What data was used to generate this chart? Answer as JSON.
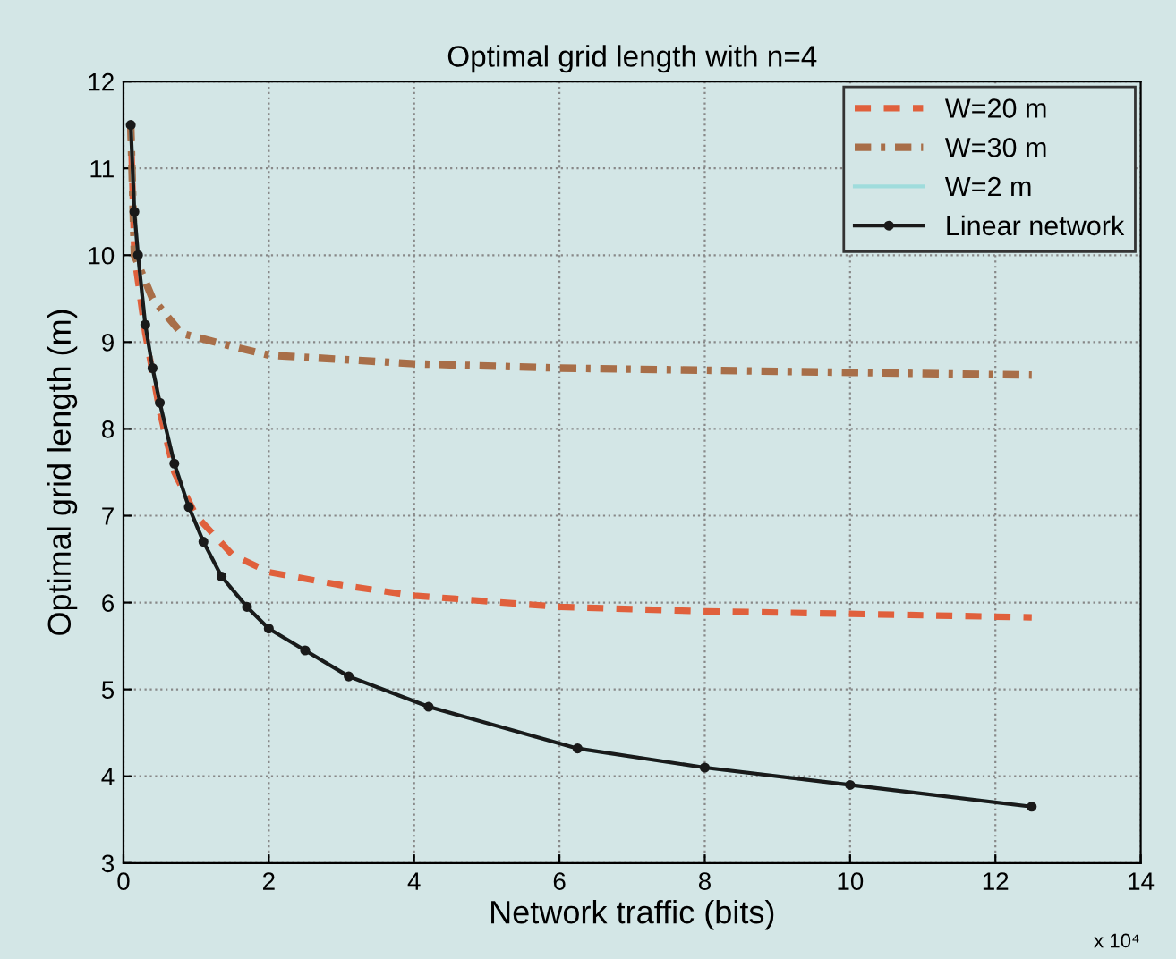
{
  "chart_data": {
    "type": "line",
    "title": "Optimal grid length with n=4",
    "xlabel": "Network traffic (bits)",
    "ylabel": "Optimal grid length (m)",
    "annotations": [
      "x 10⁴"
    ],
    "xlim": [
      0,
      14
    ],
    "xticks": [
      0,
      2,
      4,
      6,
      8,
      10,
      12,
      14
    ],
    "ylim": [
      3,
      12
    ],
    "yticks": [
      3,
      4,
      5,
      6,
      7,
      8,
      9,
      10,
      11,
      12
    ],
    "grid": true,
    "legend": "top right",
    "series": [
      {
        "name": "W=20 m",
        "color": "#e0603c",
        "line_style": "dashed",
        "marker": "none",
        "x": [
          0.1,
          0.15,
          0.3,
          0.5,
          0.7,
          1.0,
          1.5,
          2,
          3,
          4,
          6,
          8,
          10,
          12.5
        ],
        "values": [
          11.5,
          10.0,
          9.1,
          8.2,
          7.5,
          7.0,
          6.55,
          6.35,
          6.2,
          6.08,
          5.95,
          5.9,
          5.87,
          5.83
        ]
      },
      {
        "name": "W=30 m",
        "color": "#a86e48",
        "line_style": "dashdot",
        "marker": "none",
        "x": [
          0.1,
          0.15,
          0.4,
          0.8,
          1.5,
          2,
          4,
          6,
          10,
          12.5
        ],
        "values": [
          11.5,
          10.0,
          9.5,
          9.1,
          8.95,
          8.85,
          8.75,
          8.7,
          8.65,
          8.62
        ]
      },
      {
        "name": "W=2 m",
        "color": "#9fdcdc",
        "line_style": "solid",
        "marker": "none",
        "x": [
          0.1,
          0.15,
          0.2,
          0.3,
          0.4,
          0.5,
          0.7,
          0.9,
          1.1,
          1.35,
          1.7,
          2.0,
          2.5,
          3.1,
          4.2,
          6.25,
          8,
          10,
          12.5
        ],
        "values": [
          11.5,
          10.5,
          10.0,
          9.2,
          8.7,
          8.3,
          7.6,
          7.1,
          6.7,
          6.3,
          5.95,
          5.7,
          5.45,
          5.15,
          4.8,
          4.32,
          4.1,
          3.9,
          3.65
        ]
      },
      {
        "name": "Linear network",
        "color": "#1a1a1a",
        "line_style": "solid",
        "marker": "circle",
        "x": [
          0.1,
          0.15,
          0.2,
          0.3,
          0.4,
          0.5,
          0.7,
          0.9,
          1.1,
          1.35,
          1.7,
          2.0,
          2.5,
          3.1,
          4.2,
          6.25,
          8,
          10,
          12.5
        ],
        "values": [
          11.5,
          10.5,
          10.0,
          9.2,
          8.7,
          8.3,
          7.6,
          7.1,
          6.7,
          6.3,
          5.95,
          5.7,
          5.45,
          5.15,
          4.8,
          4.32,
          4.1,
          3.9,
          3.65
        ]
      }
    ]
  }
}
